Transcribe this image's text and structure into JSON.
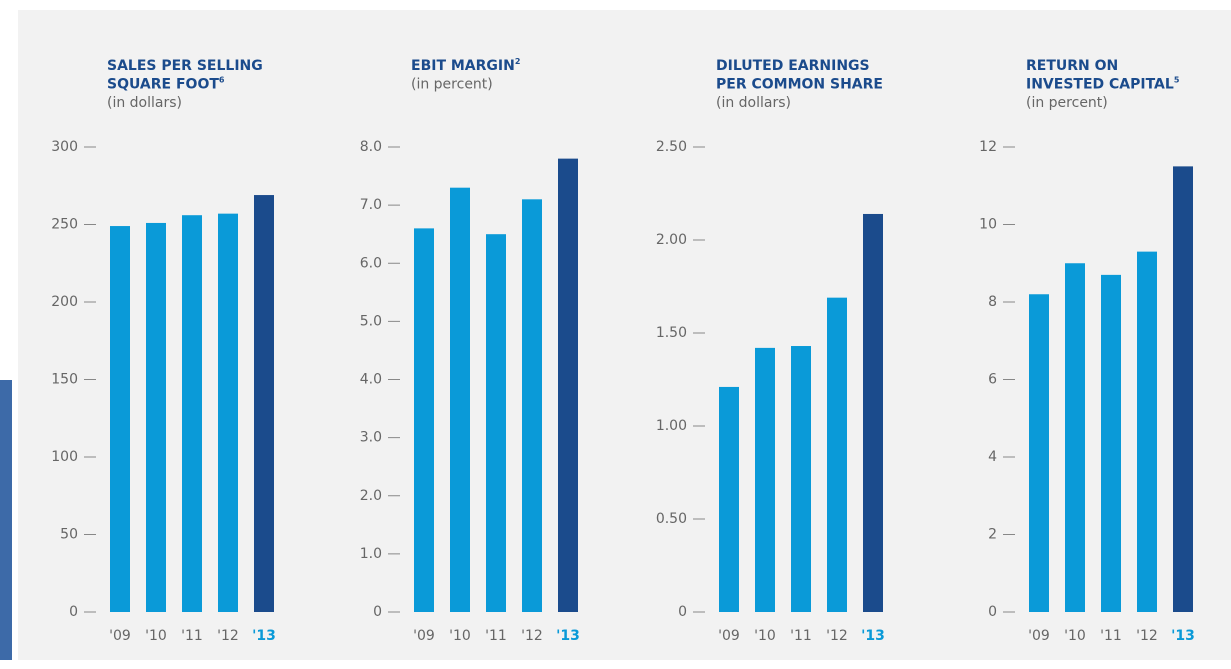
{
  "chart_data": [
    {
      "type": "bar",
      "title": [
        "SALES PER SELLING",
        "SQUARE FOOT"
      ],
      "title_note": "6",
      "subtitle": "(in dollars)",
      "categories": [
        "'09",
        "'10",
        "'11",
        "'12",
        "'13"
      ],
      "values": [
        249,
        251,
        256,
        257,
        269
      ],
      "colors": [
        "#0a9ad8",
        "#0a9ad8",
        "#0a9ad8",
        "#0a9ad8",
        "#1b4b8c"
      ],
      "ylim": [
        0,
        300
      ],
      "yticks": [
        0,
        50,
        100,
        150,
        200,
        250,
        300
      ]
    },
    {
      "type": "bar",
      "title": [
        "EBIT MARGIN"
      ],
      "title_note": "2",
      "subtitle": "(in percent)",
      "categories": [
        "'09",
        "'10",
        "'11",
        "'12",
        "'13"
      ],
      "values": [
        6.6,
        7.3,
        6.5,
        7.1,
        7.8
      ],
      "colors": [
        "#0a9ad8",
        "#0a9ad8",
        "#0a9ad8",
        "#0a9ad8",
        "#1b4b8c"
      ],
      "ylim": [
        0,
        8
      ],
      "yticks": [
        0,
        {
          "value": 1,
          "label": "1.0"
        },
        {
          "value": 2,
          "label": "2.0"
        },
        {
          "value": 3,
          "label": "3.0"
        },
        {
          "value": 4,
          "label": "4.0"
        },
        {
          "value": 5,
          "label": "5.0"
        },
        {
          "value": 6,
          "label": "6.0"
        },
        {
          "value": 7,
          "label": "7.0"
        },
        {
          "value": 8,
          "label": "8.0"
        }
      ]
    },
    {
      "type": "bar",
      "title": [
        "DILUTED EARNINGS",
        "PER COMMON SHARE"
      ],
      "subtitle": "(in dollars)",
      "categories": [
        "'09",
        "'10",
        "'11",
        "'12",
        "'13"
      ],
      "values": [
        1.21,
        1.42,
        1.43,
        1.69,
        2.14
      ],
      "colors": [
        "#0a9ad8",
        "#0a9ad8",
        "#0a9ad8",
        "#0a9ad8",
        "#1b4b8c"
      ],
      "ylim": [
        0,
        2.5
      ],
      "yticks": [
        0,
        {
          "value": 0.5,
          "label": "0.50"
        },
        {
          "value": 1,
          "label": "1.00"
        },
        {
          "value": 1.5,
          "label": "1.50"
        },
        {
          "value": 2,
          "label": "2.00"
        },
        {
          "value": 2.5,
          "label": "2.50"
        }
      ]
    },
    {
      "type": "bar",
      "title": [
        "RETURN ON",
        "INVESTED CAPITAL"
      ],
      "title_note": "5",
      "subtitle": "(in percent)",
      "categories": [
        "'09",
        "'10",
        "'11",
        "'12",
        "'13"
      ],
      "values": [
        8.2,
        9.0,
        8.7,
        9.3,
        11.5
      ],
      "colors": [
        "#0a9ad8",
        "#0a9ad8",
        "#0a9ad8",
        "#0a9ad8",
        "#1b4b8c"
      ],
      "ylim": [
        0,
        12
      ],
      "yticks": [
        0,
        2,
        4,
        6,
        8,
        10,
        12
      ]
    }
  ]
}
